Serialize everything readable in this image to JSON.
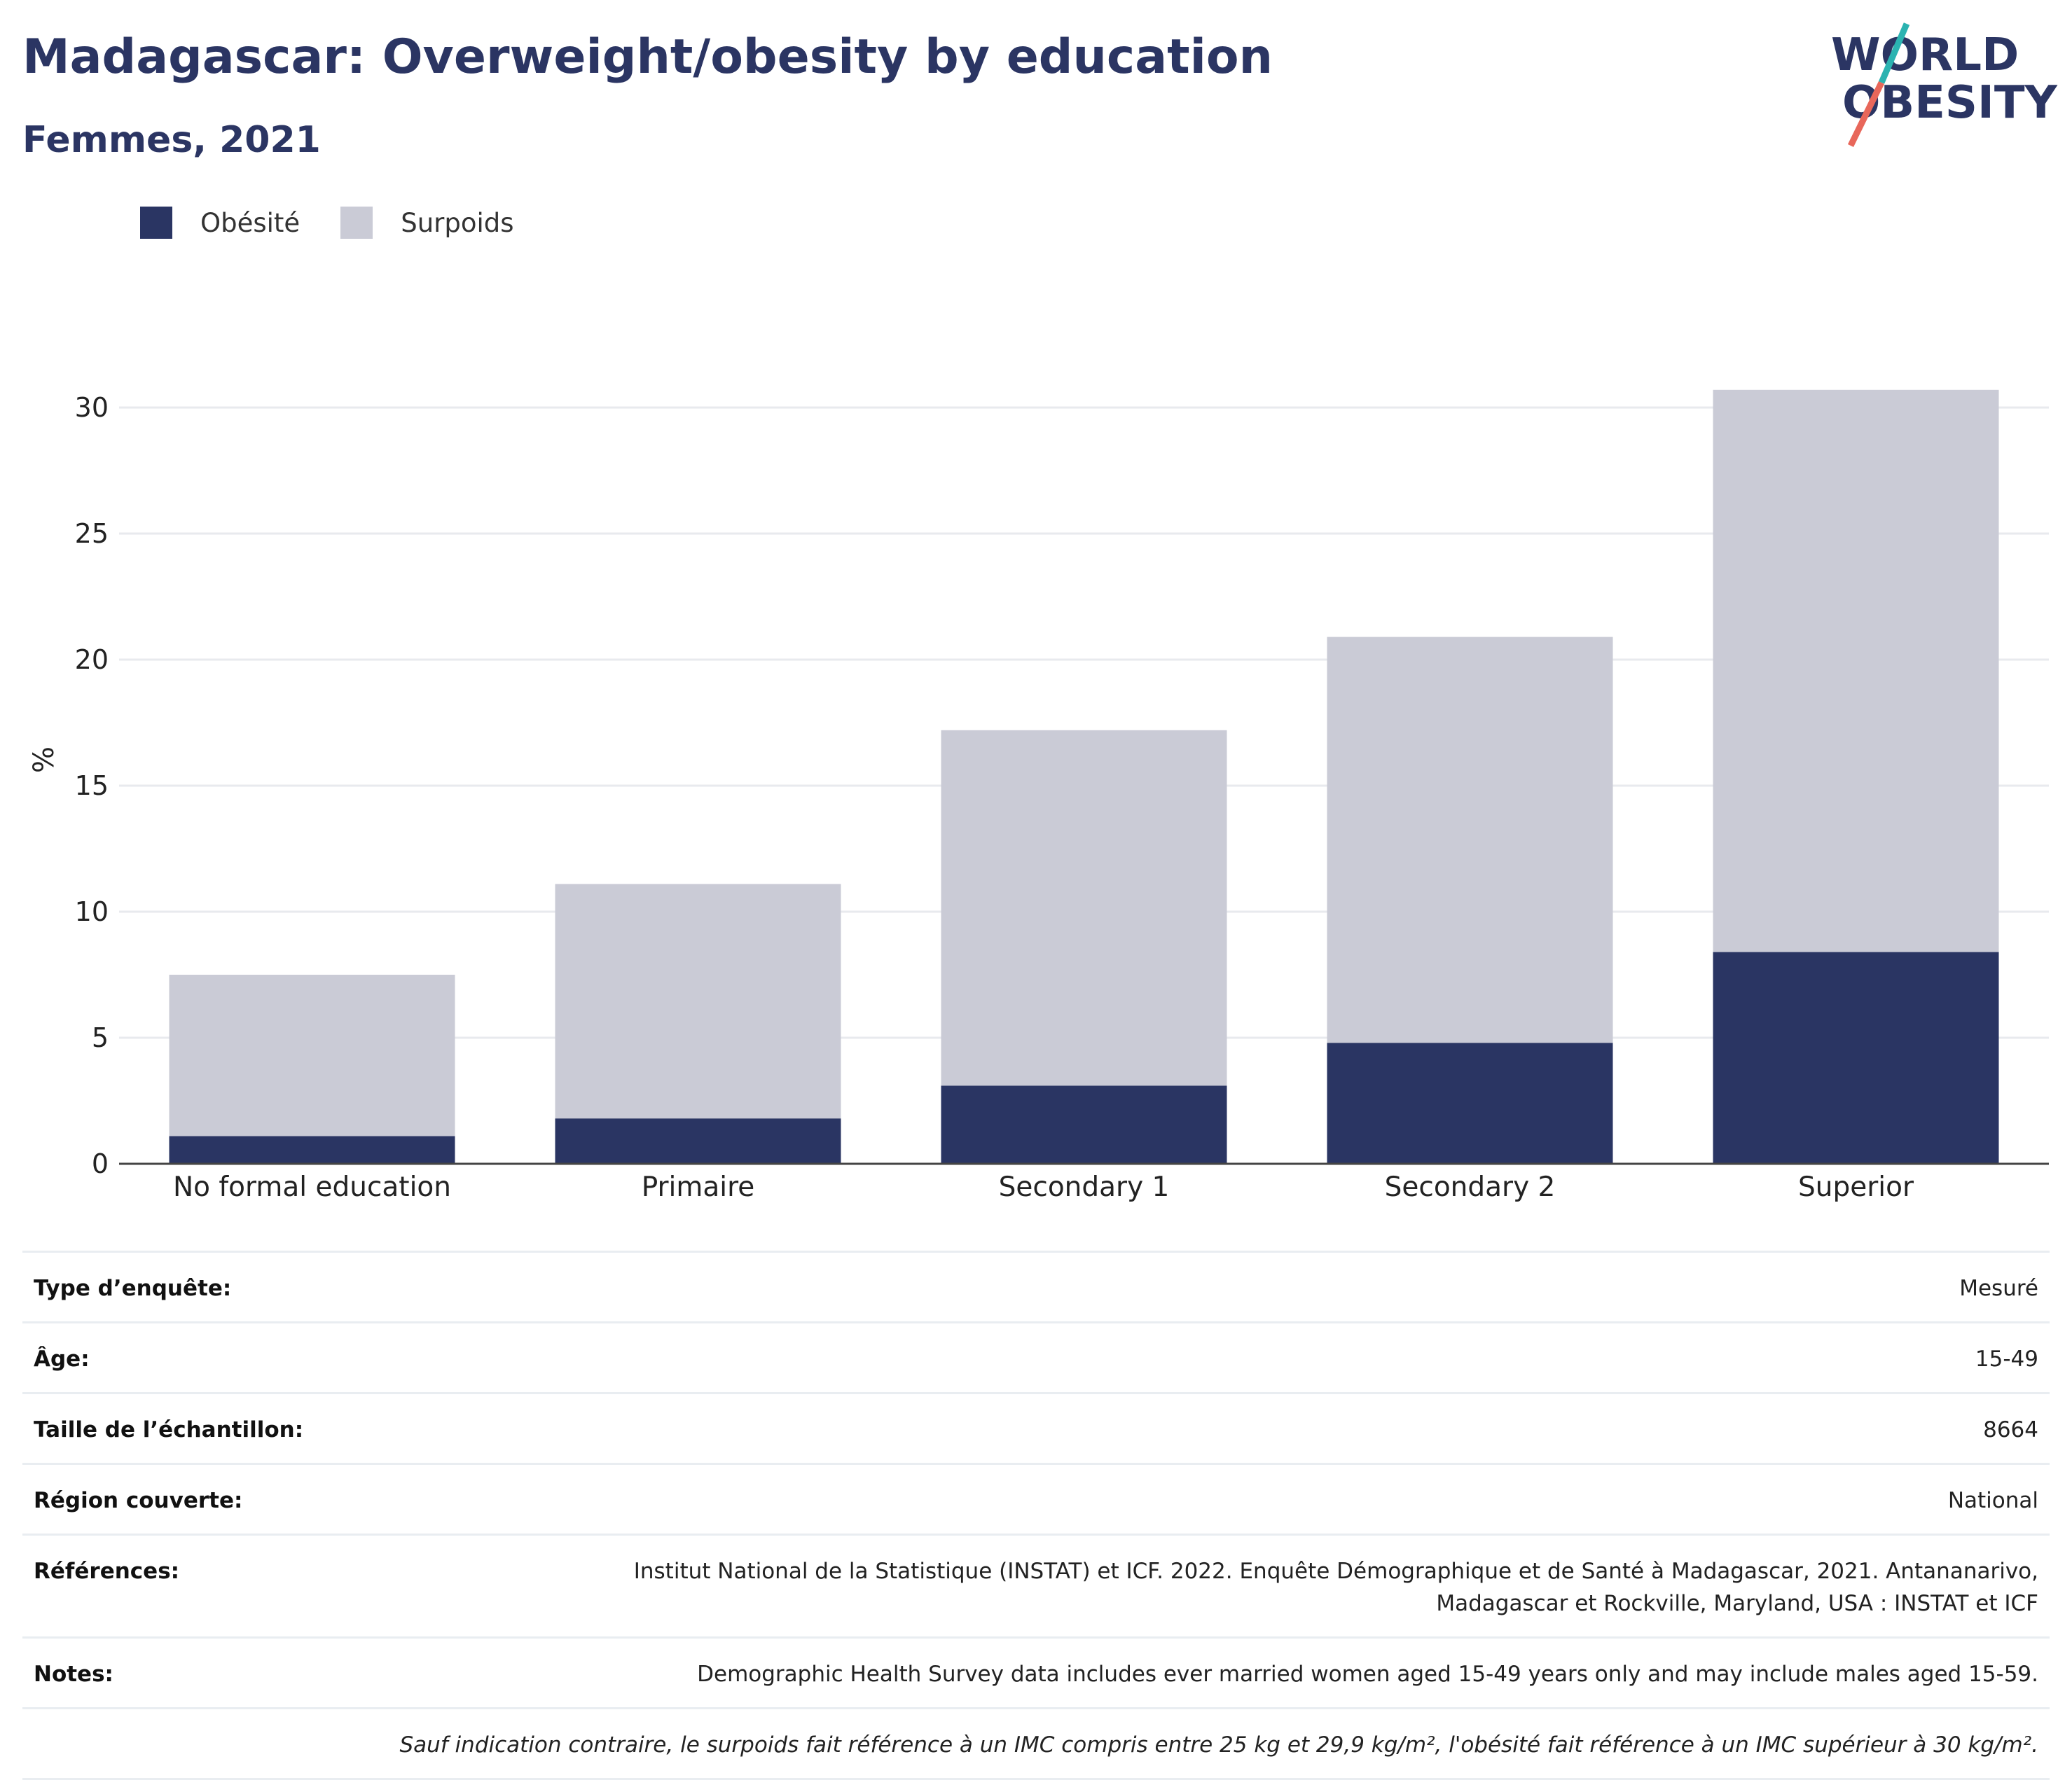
{
  "header": {
    "title": "Madagascar: Overweight/obesity by education",
    "subtitle": "Femmes, 2021"
  },
  "logo": {
    "line1": "WORLD",
    "line2": "OBESITY",
    "slash_colors": [
      "#2bb3b1",
      "#e8675a"
    ]
  },
  "legend": [
    {
      "label": "Obésité",
      "color": "#2a3563"
    },
    {
      "label": "Surpoids",
      "color": "#cacbd6"
    }
  ],
  "chart_data": {
    "type": "bar",
    "stacked": true,
    "categories": [
      "No formal education",
      "Primaire",
      "Secondary 1",
      "Secondary 2",
      "Superior"
    ],
    "series": [
      {
        "name": "Obésité",
        "color": "#2a3563",
        "values": [
          1.1,
          1.8,
          3.1,
          4.8,
          8.4
        ]
      },
      {
        "name": "Surpoids",
        "color": "#cacbd6",
        "values": [
          6.4,
          9.3,
          14.1,
          16.1,
          22.3
        ]
      }
    ],
    "ylabel": "%",
    "yticks": [
      0,
      5,
      10,
      15,
      20,
      25,
      30
    ],
    "ylim": [
      0,
      32.5
    ],
    "grid": true,
    "legend_position": "top-left"
  },
  "info_table": [
    {
      "key": "Type d’enquête:",
      "value": "Mesuré"
    },
    {
      "key": "Âge:",
      "value": "15-49"
    },
    {
      "key": "Taille de l’échantillon:",
      "value": "8664"
    },
    {
      "key": "Région couverte:",
      "value": "National"
    },
    {
      "key": "Références:",
      "value": "Institut National de la Statistique (INSTAT) et ICF. 2022. Enquête Démographique et de Santé à Madagascar, 2021. Antananarivo,\nMadagascar et Rockville, Maryland, USA : INSTAT et ICF"
    },
    {
      "key": "Notes:",
      "value": "Demographic Health Survey data includes ever married women aged 15-49 years only and may include males aged 15-59."
    }
  ],
  "footnote": "Sauf indication contraire, le surpoids fait référence à un IMC compris entre 25 kg et 29,9 kg/m², l'obésité fait référence à un IMC supérieur à 30 kg/m²."
}
